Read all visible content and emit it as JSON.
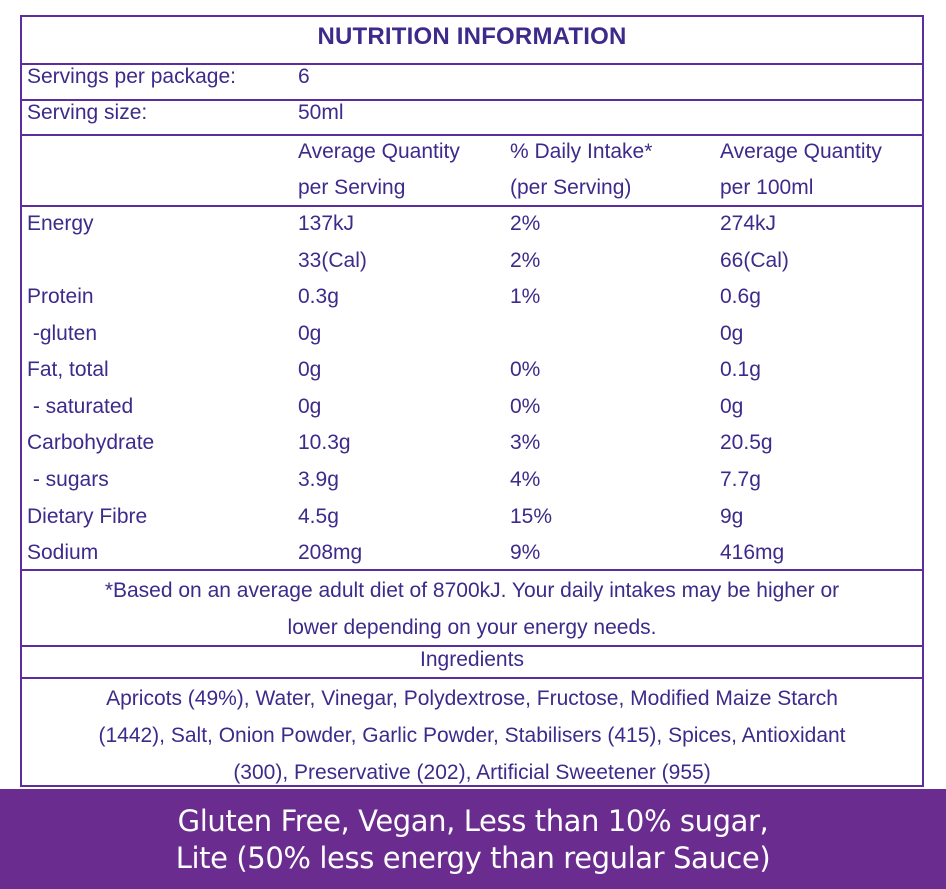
{
  "title": "NUTRITION INFORMATION",
  "servings": {
    "per_package_label": "Servings per package:",
    "per_package_value": "6",
    "size_label": "Serving size:",
    "size_value": "50ml"
  },
  "headers": {
    "col1_line1": "Average Quantity",
    "col1_line2": "per Serving",
    "col2_line1": "% Daily Intake*",
    "col2_line2": "(per Serving)",
    "col3_line1": "Average Quantity",
    "col3_line2": "per 100ml"
  },
  "rows": [
    {
      "name": "Energy",
      "per_serving": "137kJ",
      "daily_intake": "2%",
      "per_100ml": "274kJ"
    },
    {
      "name": "",
      "per_serving": "33(Cal)",
      "daily_intake": "2%",
      "per_100ml": "66(Cal)"
    },
    {
      "name": "Protein",
      "per_serving": "0.3g",
      "daily_intake": "1%",
      "per_100ml": "0.6g"
    },
    {
      "name": " -gluten",
      "per_serving": "0g",
      "daily_intake": "",
      "per_100ml": "0g"
    },
    {
      "name": "Fat, total",
      "per_serving": "0g",
      "daily_intake": "0%",
      "per_100ml": "0.1g"
    },
    {
      "name": " - saturated",
      "per_serving": "0g",
      "daily_intake": "0%",
      "per_100ml": "0g"
    },
    {
      "name": "Carbohydrate",
      "per_serving": "10.3g",
      "daily_intake": "3%",
      "per_100ml": "20.5g"
    },
    {
      "name": " - sugars",
      "per_serving": "3.9g",
      "daily_intake": "4%",
      "per_100ml": "7.7g"
    },
    {
      "name": "Dietary Fibre",
      "per_serving": "4.5g",
      "daily_intake": "15%",
      "per_100ml": "9g"
    },
    {
      "name": "Sodium",
      "per_serving": "208mg",
      "daily_intake": "9%",
      "per_100ml": "416mg"
    }
  ],
  "footnote": {
    "line1": "*Based on an average adult diet of 8700kJ. Your daily intakes may be higher or",
    "line2": "lower depending on your energy needs."
  },
  "ingredients": {
    "heading": "Ingredients",
    "line1": "Apricots (49%), Water, Vinegar, Polydextrose, Fructose, Modified Maize Starch",
    "line2": "(1442), Salt, Onion Powder, Garlic Powder, Stabilisers (415), Spices, Antioxidant",
    "line3": "(300), Preservative (202), Artificial Sweetener (955)"
  },
  "banner": {
    "line1": "Gluten Free, Vegan, Less than 10% sugar,",
    "line2": "Lite (50% less energy than regular Sauce)"
  },
  "colors": {
    "border": "#5b2d9e",
    "text": "#3d2a8a",
    "banner_bg": "#6a2d8f",
    "banner_text": "#ffffff"
  }
}
